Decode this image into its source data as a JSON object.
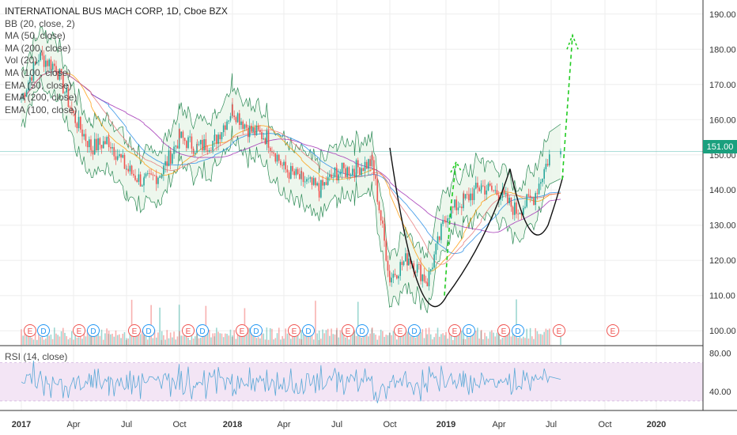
{
  "legend": {
    "title": "INTERNATIONAL BUS MACH CORP, 1D, Cboe BZX",
    "indicators": [
      "BB (20, close, 2)",
      "MA (50, close)",
      "MA (200, close)",
      "Vol (20)",
      "MA (100, close)",
      "EMA (50, close)",
      "EMA (200, close)",
      "EMA (100, close)"
    ]
  },
  "rsi_label": "RSI (14, close)",
  "last_price_label": "151.00",
  "colors": {
    "up": "#26a69a",
    "down": "#ef5350",
    "bb_line": "#2e8b57",
    "bb_fill": "#e8f5e9",
    "ma": "#9c27b0",
    "ema": "#ff9800",
    "rsi_band": "#f3e5f5",
    "rsi_line": "#5aa9d6",
    "pattern_curve": "#111111",
    "pattern_arrow": "#22cc22",
    "grid": "#eeeeee"
  },
  "chart_data": {
    "type": "line",
    "price_axis": {
      "min": 96,
      "max": 194,
      "ticks": [
        "190.00",
        "180.00",
        "170.00",
        "160.00",
        "150.00",
        "140.00",
        "130.00",
        "120.00",
        "110.00",
        "100.00"
      ]
    },
    "rsi_axis": {
      "min": 20,
      "max": 88,
      "ticks": [
        "80.00",
        "40.00"
      ]
    },
    "time_labels": [
      "2017",
      "Apr",
      "Jul",
      "Oct",
      "2018",
      "Apr",
      "Jul",
      "Oct",
      "2019",
      "Apr",
      "Jul",
      "Oct",
      "2020"
    ],
    "price_series": [
      {
        "date": "2017-01",
        "close": 166
      },
      {
        "date": "2017-02",
        "close": 178
      },
      {
        "date": "2017-03",
        "close": 175
      },
      {
        "date": "2017-04",
        "close": 161
      },
      {
        "date": "2017-05",
        "close": 152
      },
      {
        "date": "2017-06",
        "close": 154
      },
      {
        "date": "2017-07",
        "close": 146
      },
      {
        "date": "2017-08",
        "close": 142
      },
      {
        "date": "2017-09",
        "close": 145
      },
      {
        "date": "2017-10",
        "close": 155
      },
      {
        "date": "2017-11",
        "close": 152
      },
      {
        "date": "2017-12",
        "close": 154
      },
      {
        "date": "2018-01",
        "close": 163
      },
      {
        "date": "2018-02",
        "close": 157
      },
      {
        "date": "2018-03",
        "close": 155
      },
      {
        "date": "2018-04",
        "close": 146
      },
      {
        "date": "2018-05",
        "close": 143
      },
      {
        "date": "2018-06",
        "close": 140
      },
      {
        "date": "2018-07",
        "close": 145
      },
      {
        "date": "2018-08",
        "close": 146
      },
      {
        "date": "2018-09",
        "close": 148
      },
      {
        "date": "2018-10",
        "close": 115
      },
      {
        "date": "2018-11",
        "close": 121
      },
      {
        "date": "2018-12",
        "close": 114
      },
      {
        "date": "2019-01",
        "close": 133
      },
      {
        "date": "2019-02",
        "close": 137
      },
      {
        "date": "2019-03",
        "close": 141
      },
      {
        "date": "2019-04",
        "close": 139
      },
      {
        "date": "2019-05",
        "close": 134
      },
      {
        "date": "2019-06",
        "close": 138
      },
      {
        "date": "2019-07",
        "close": 151
      }
    ],
    "earnings_markers": [
      "E",
      "D",
      "E",
      "D",
      "E",
      "D",
      "E",
      "D",
      "E",
      "D",
      "E",
      "D",
      "E",
      "D",
      "E",
      "D",
      "E",
      "D",
      "E",
      "D",
      "E",
      "E"
    ],
    "last_price": 151.0
  }
}
